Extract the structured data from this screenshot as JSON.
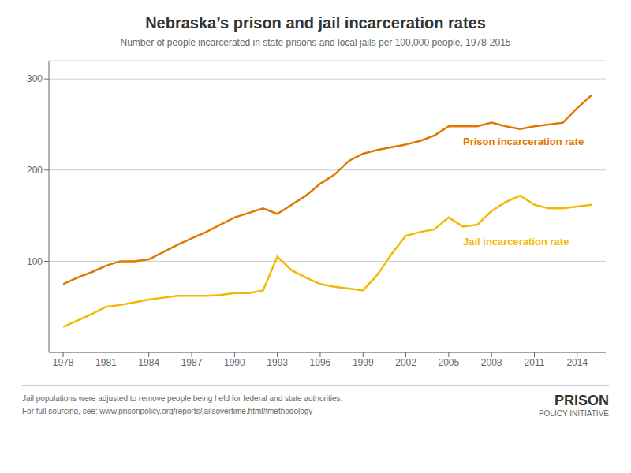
{
  "chart_data": {
    "type": "line",
    "title": "Nebraska’s prison and jail incarceration rates",
    "subtitle": "Number of people incarcerated in state prisons and local jails per 100,000 people, 1978-2015",
    "notes": [
      "Jail populations were adjusted to remove people being held for federal and state authorities.",
      "For full sourcing, see: www.prisonpolicy.org/reports/jailsovertime.html#methodology"
    ],
    "credit": [
      "PRISON",
      "POLICY INITIATIVE"
    ],
    "x": [
      1978,
      1979,
      1980,
      1981,
      1982,
      1983,
      1984,
      1985,
      1986,
      1987,
      1988,
      1989,
      1990,
      1991,
      1992,
      1993,
      1994,
      1995,
      1996,
      1997,
      1998,
      1999,
      2000,
      2001,
      2002,
      2003,
      2004,
      2005,
      2006,
      2007,
      2008,
      2009,
      2010,
      2011,
      2012,
      2013,
      2014,
      2015
    ],
    "series": [
      {
        "name": "Prison incarceration rate",
        "color": "#e07800",
        "values": [
          75,
          82,
          88,
          95,
          100,
          100,
          102,
          110,
          118,
          125,
          132,
          140,
          148,
          153,
          158,
          152,
          162,
          172,
          185,
          195,
          210,
          218,
          222,
          225,
          228,
          232,
          238,
          248,
          248,
          248,
          252,
          248,
          245,
          248,
          250,
          252,
          268,
          282
        ]
      },
      {
        "name": "Jail incarceration rate",
        "color": "#f5b800",
        "values": [
          28,
          35,
          42,
          50,
          52,
          55,
          58,
          60,
          62,
          62,
          62,
          63,
          65,
          65,
          68,
          105,
          90,
          82,
          75,
          72,
          70,
          68,
          85,
          108,
          128,
          132,
          135,
          148,
          138,
          140,
          155,
          165,
          172,
          162,
          158,
          158,
          160,
          162
        ]
      }
    ],
    "xlim": [
      1977,
      2016
    ],
    "xticks": [
      1978,
      1981,
      1984,
      1987,
      1990,
      1993,
      1996,
      1999,
      2002,
      2005,
      2008,
      2011,
      2014
    ],
    "ylim": [
      0,
      320
    ],
    "yticks": [
      100,
      200,
      300
    ],
    "grid": true
  }
}
